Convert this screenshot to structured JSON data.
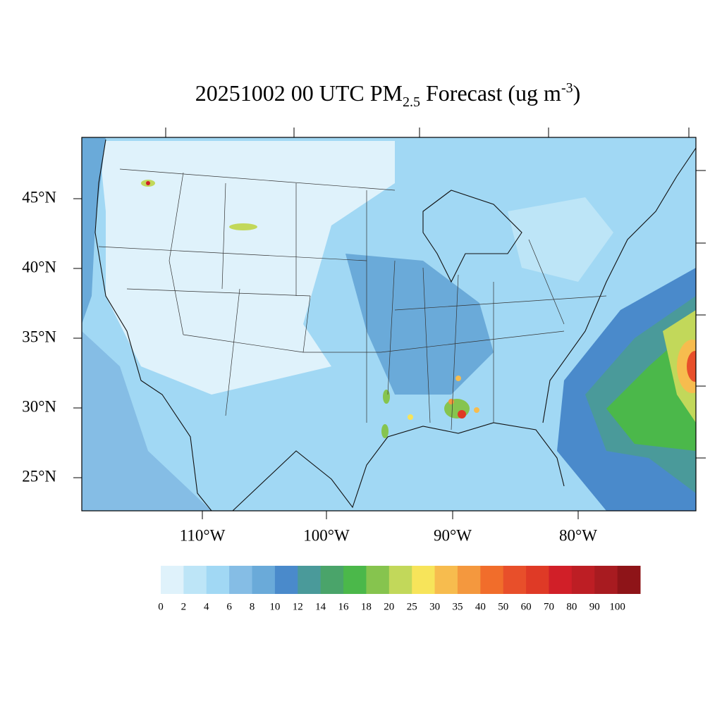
{
  "title": {
    "main": "20251002 00 UTC PM",
    "subscript": "2.5",
    "after": " Forecast (ug m",
    "superscript": "-3",
    "close": ")"
  },
  "map": {
    "lat_labels": [
      "45°N",
      "40°N",
      "35°N",
      "30°N",
      "25°N"
    ],
    "lon_labels": [
      "110°W",
      "100°W",
      "90°W",
      "80°W"
    ]
  },
  "colorbar": {
    "levels": [
      0,
      2,
      4,
      6,
      8,
      10,
      12,
      14,
      16,
      18,
      20,
      25,
      30,
      35,
      40,
      50,
      60,
      70,
      80,
      90,
      100
    ],
    "colors": [
      "#dff2fb",
      "#bde5f7",
      "#a1d8f4",
      "#85bde5",
      "#6aaad9",
      "#4a8acb",
      "#4a9a9a",
      "#4aa46a",
      "#4bb84a",
      "#86c44e",
      "#c2d85a",
      "#f7e45a",
      "#f7bc4e",
      "#f4983e",
      "#f16d2b",
      "#e84f2a",
      "#df3a26",
      "#d11f28",
      "#bd1e24",
      "#a81b20",
      "#8e1418"
    ]
  }
}
